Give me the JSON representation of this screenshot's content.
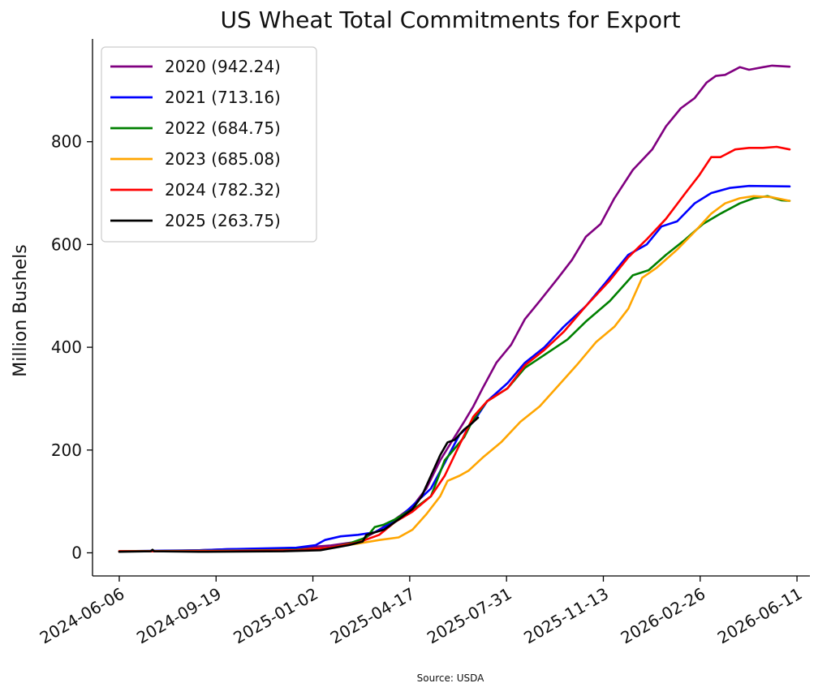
{
  "chart_data": {
    "type": "line",
    "title": "US Wheat Total Commitments for Export",
    "xlabel": "",
    "ylabel": "Million Bushels",
    "source": "Source: USDA",
    "ylim": [
      -45,
      1000
    ],
    "xlim": [
      "2024-05-08",
      "2026-06-25"
    ],
    "x_ticks": [
      "2024-06-06",
      "2024-09-19",
      "2025-01-02",
      "2025-04-17",
      "2025-07-31",
      "2025-11-13",
      "2026-02-26",
      "2026-06-11"
    ],
    "y_ticks": [
      0,
      200,
      400,
      600,
      800
    ],
    "grid": false,
    "legend_position": "top-left",
    "series": [
      {
        "name": "2020 (942.24)",
        "color": "#800080",
        "points": [
          [
            "2024-06-06",
            3
          ],
          [
            "2024-07-15",
            3
          ],
          [
            "2024-09-01",
            5
          ],
          [
            "2024-10-01",
            7
          ],
          [
            "2024-11-15",
            8
          ],
          [
            "2024-12-20",
            10
          ],
          [
            "2025-01-20",
            14
          ],
          [
            "2025-02-20",
            22
          ],
          [
            "2025-03-15",
            45
          ],
          [
            "2025-04-01",
            65
          ],
          [
            "2025-04-20",
            90
          ],
          [
            "2025-05-05",
            125
          ],
          [
            "2025-05-20",
            180
          ],
          [
            "2025-06-01",
            215
          ],
          [
            "2025-06-15",
            255
          ],
          [
            "2025-06-25",
            285
          ],
          [
            "2025-07-05",
            320
          ],
          [
            "2025-07-20",
            370
          ],
          [
            "2025-08-05",
            405
          ],
          [
            "2025-08-20",
            455
          ],
          [
            "2025-09-05",
            490
          ],
          [
            "2025-09-25",
            535
          ],
          [
            "2025-10-10",
            570
          ],
          [
            "2025-10-25",
            615
          ],
          [
            "2025-11-10",
            640
          ],
          [
            "2025-11-25",
            690
          ],
          [
            "2025-12-15",
            745
          ],
          [
            "2026-01-05",
            785
          ],
          [
            "2026-01-20",
            830
          ],
          [
            "2026-02-05",
            865
          ],
          [
            "2026-02-20",
            885
          ],
          [
            "2026-03-05",
            915
          ],
          [
            "2026-03-15",
            928
          ],
          [
            "2026-03-25",
            930
          ],
          [
            "2026-04-10",
            945
          ],
          [
            "2026-04-20",
            940
          ],
          [
            "2026-05-05",
            945
          ],
          [
            "2026-05-15",
            948
          ],
          [
            "2026-06-03",
            946
          ]
        ]
      },
      {
        "name": "2021 (713.16)",
        "color": "#0000ff",
        "points": [
          [
            "2024-06-06",
            3
          ],
          [
            "2024-09-01",
            5
          ],
          [
            "2024-10-01",
            7
          ],
          [
            "2024-12-15",
            10
          ],
          [
            "2025-01-05",
            15
          ],
          [
            "2025-01-15",
            25
          ],
          [
            "2025-02-01",
            32
          ],
          [
            "2025-02-20",
            35
          ],
          [
            "2025-03-10",
            40
          ],
          [
            "2025-03-25",
            55
          ],
          [
            "2025-04-10",
            75
          ],
          [
            "2025-04-25",
            100
          ],
          [
            "2025-05-10",
            125
          ],
          [
            "2025-05-25",
            175
          ],
          [
            "2025-06-10",
            230
          ],
          [
            "2025-06-25",
            255
          ],
          [
            "2025-07-10",
            295
          ],
          [
            "2025-08-01",
            330
          ],
          [
            "2025-08-20",
            370
          ],
          [
            "2025-09-10",
            400
          ],
          [
            "2025-10-01",
            440
          ],
          [
            "2025-10-25",
            480
          ],
          [
            "2025-11-15",
            525
          ],
          [
            "2025-12-10",
            580
          ],
          [
            "2025-12-30",
            600
          ],
          [
            "2026-01-15",
            635
          ],
          [
            "2026-02-01",
            645
          ],
          [
            "2026-02-20",
            680
          ],
          [
            "2026-03-10",
            700
          ],
          [
            "2026-03-30",
            710
          ],
          [
            "2026-04-20",
            714
          ],
          [
            "2026-06-03",
            713
          ]
        ]
      },
      {
        "name": "2022 (684.75)",
        "color": "#008000",
        "points": [
          [
            "2024-06-06",
            3
          ],
          [
            "2024-10-01",
            4
          ],
          [
            "2024-12-15",
            6
          ],
          [
            "2025-01-20",
            10
          ],
          [
            "2025-02-10",
            18
          ],
          [
            "2025-03-01",
            30
          ],
          [
            "2025-03-10",
            50
          ],
          [
            "2025-03-20",
            55
          ],
          [
            "2025-04-01",
            65
          ],
          [
            "2025-04-15",
            80
          ],
          [
            "2025-04-25",
            90
          ],
          [
            "2025-05-10",
            110
          ],
          [
            "2025-05-25",
            180
          ],
          [
            "2025-06-15",
            225
          ],
          [
            "2025-06-25",
            260
          ],
          [
            "2025-07-10",
            295
          ],
          [
            "2025-08-01",
            320
          ],
          [
            "2025-08-20",
            360
          ],
          [
            "2025-09-10",
            385
          ],
          [
            "2025-10-05",
            415
          ],
          [
            "2025-10-25",
            450
          ],
          [
            "2025-11-20",
            490
          ],
          [
            "2025-12-15",
            540
          ],
          [
            "2026-01-01",
            550
          ],
          [
            "2026-01-20",
            580
          ],
          [
            "2026-02-10",
            610
          ],
          [
            "2026-03-01",
            640
          ],
          [
            "2026-03-20",
            660
          ],
          [
            "2026-04-10",
            680
          ],
          [
            "2026-04-25",
            690
          ],
          [
            "2026-05-10",
            694
          ],
          [
            "2026-05-25",
            686
          ],
          [
            "2026-06-03",
            685
          ]
        ]
      },
      {
        "name": "2023 (685.08)",
        "color": "#ffa500",
        "points": [
          [
            "2024-06-06",
            3
          ],
          [
            "2024-10-01",
            4
          ],
          [
            "2024-12-15",
            5
          ],
          [
            "2025-01-20",
            10
          ],
          [
            "2025-02-20",
            18
          ],
          [
            "2025-03-15",
            25
          ],
          [
            "2025-04-05",
            30
          ],
          [
            "2025-04-20",
            45
          ],
          [
            "2025-05-05",
            75
          ],
          [
            "2025-05-20",
            110
          ],
          [
            "2025-05-28",
            140
          ],
          [
            "2025-06-10",
            150
          ],
          [
            "2025-06-20",
            160
          ],
          [
            "2025-07-05",
            185
          ],
          [
            "2025-07-25",
            215
          ],
          [
            "2025-08-15",
            255
          ],
          [
            "2025-09-05",
            285
          ],
          [
            "2025-09-25",
            325
          ],
          [
            "2025-10-15",
            365
          ],
          [
            "2025-11-05",
            410
          ],
          [
            "2025-11-25",
            440
          ],
          [
            "2025-12-10",
            475
          ],
          [
            "2025-12-25",
            535
          ],
          [
            "2026-01-10",
            555
          ],
          [
            "2026-02-01",
            590
          ],
          [
            "2026-02-20",
            625
          ],
          [
            "2026-03-10",
            660
          ],
          [
            "2026-03-25",
            680
          ],
          [
            "2026-04-10",
            690
          ],
          [
            "2026-04-25",
            694
          ],
          [
            "2026-05-15",
            692
          ],
          [
            "2026-06-03",
            685
          ]
        ]
      },
      {
        "name": "2024 (782.32)",
        "color": "#ff0000",
        "points": [
          [
            "2024-06-06",
            3
          ],
          [
            "2024-10-01",
            3
          ],
          [
            "2024-12-15",
            5
          ],
          [
            "2025-01-20",
            10
          ],
          [
            "2025-02-20",
            20
          ],
          [
            "2025-03-15",
            35
          ],
          [
            "2025-04-01",
            60
          ],
          [
            "2025-04-20",
            80
          ],
          [
            "2025-05-10",
            110
          ],
          [
            "2025-05-25",
            150
          ],
          [
            "2025-06-10",
            210
          ],
          [
            "2025-06-25",
            265
          ],
          [
            "2025-07-10",
            295
          ],
          [
            "2025-08-01",
            320
          ],
          [
            "2025-08-20",
            365
          ],
          [
            "2025-09-10",
            395
          ],
          [
            "2025-10-01",
            430
          ],
          [
            "2025-10-25",
            480
          ],
          [
            "2025-11-20",
            530
          ],
          [
            "2025-12-10",
            575
          ],
          [
            "2025-12-30",
            610
          ],
          [
            "2026-01-20",
            650
          ],
          [
            "2026-02-10",
            700
          ],
          [
            "2026-02-25",
            735
          ],
          [
            "2026-03-10",
            770
          ],
          [
            "2026-03-20",
            770
          ],
          [
            "2026-04-05",
            785
          ],
          [
            "2026-04-20",
            788
          ],
          [
            "2026-05-05",
            788
          ],
          [
            "2026-05-20",
            790
          ],
          [
            "2026-06-03",
            785
          ]
        ]
      },
      {
        "name": "2025 (263.75)",
        "color": "#000000",
        "points": [
          [
            "2024-06-06",
            2
          ],
          [
            "2024-07-10",
            3
          ],
          [
            "2024-07-12",
            6
          ],
          [
            "2024-07-14",
            3
          ],
          [
            "2024-09-01",
            2
          ],
          [
            "2024-12-01",
            3
          ],
          [
            "2025-01-10",
            5
          ],
          [
            "2025-02-10",
            15
          ],
          [
            "2025-02-25",
            22
          ],
          [
            "2025-03-01",
            35
          ],
          [
            "2025-03-20",
            45
          ],
          [
            "2025-04-05",
            65
          ],
          [
            "2025-04-20",
            85
          ],
          [
            "2025-04-30",
            110
          ],
          [
            "2025-05-10",
            150
          ],
          [
            "2025-05-20",
            190
          ],
          [
            "2025-05-28",
            215
          ],
          [
            "2025-06-05",
            220
          ],
          [
            "2025-06-15",
            240
          ],
          [
            "2025-06-22",
            250
          ],
          [
            "2025-06-30",
            263
          ]
        ]
      }
    ]
  }
}
